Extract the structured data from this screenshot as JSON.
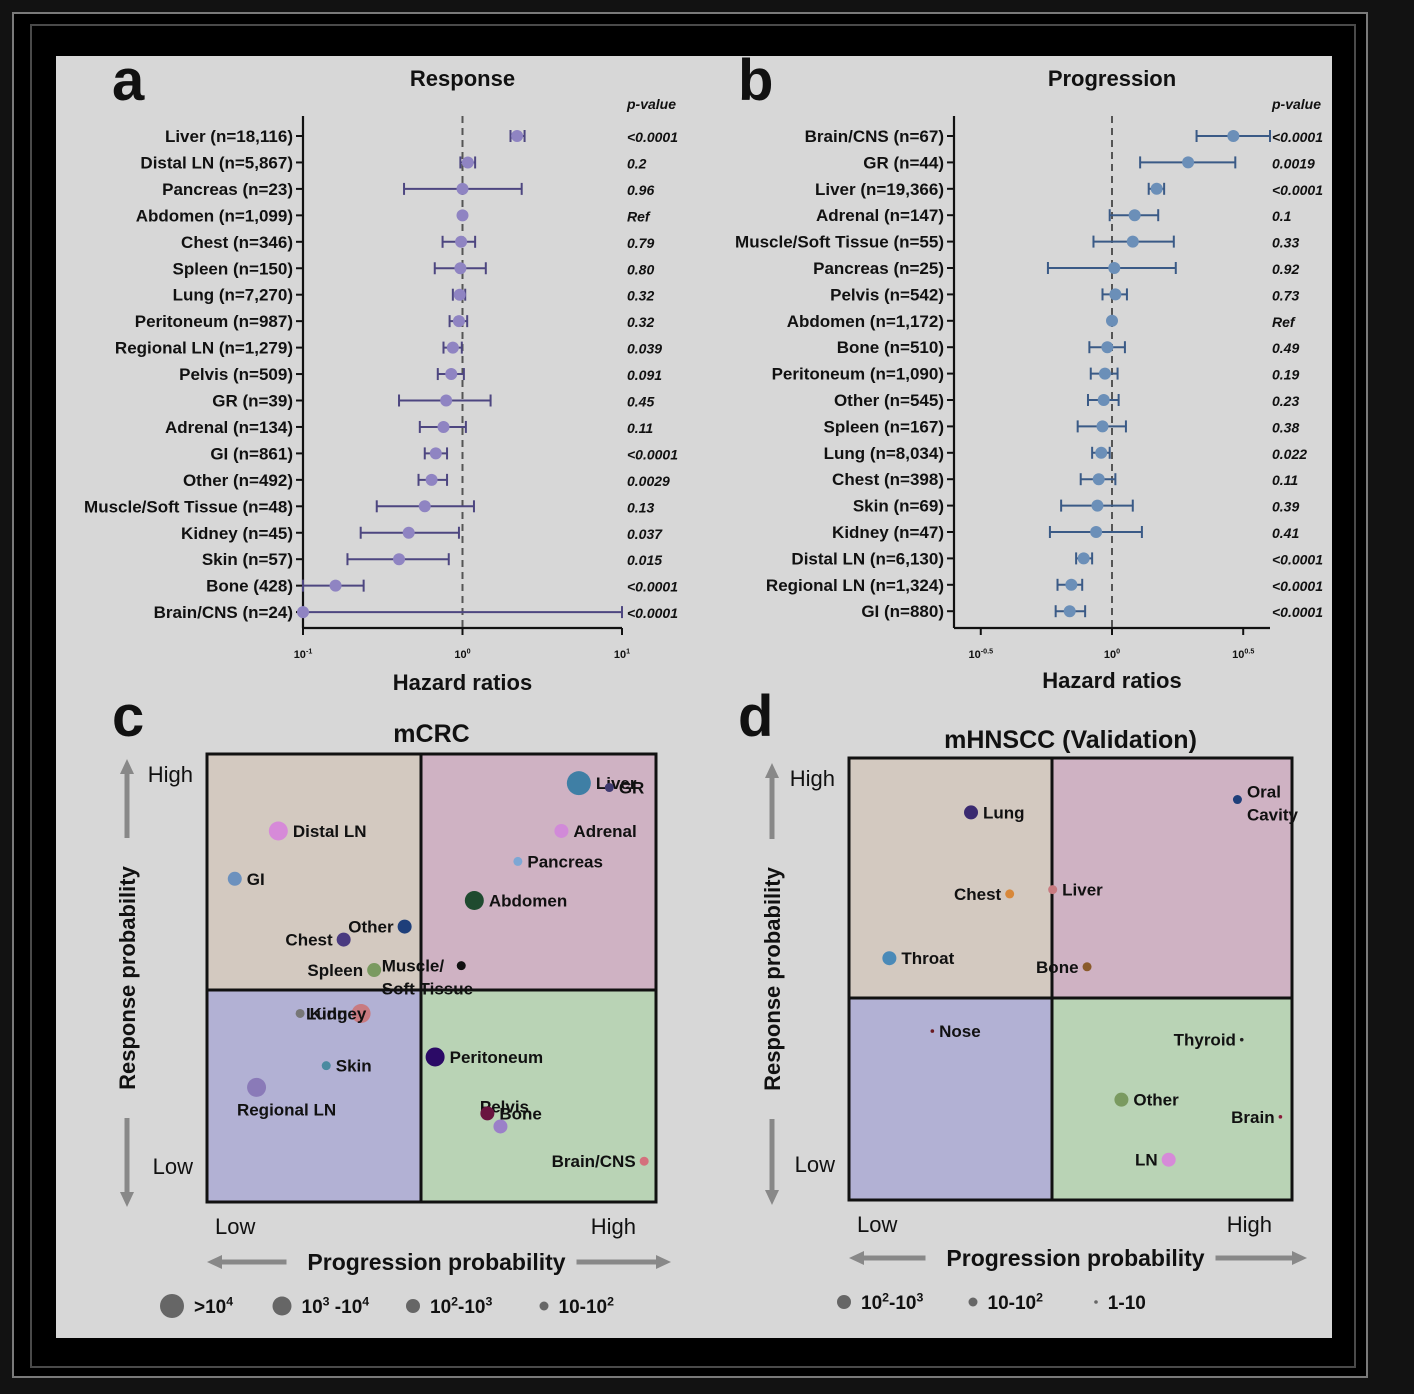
{
  "chart_data": [
    {
      "panel": "a",
      "type": "forest",
      "title": "Response",
      "xlabel": "Hazard ratios",
      "pvalue_header": "p-value",
      "x_scale": "log10",
      "xlim": [
        0.1,
        10
      ],
      "xticks": [
        {
          "value": 0.1,
          "base": "10",
          "exp": "-1"
        },
        {
          "value": 1,
          "base": "10",
          "exp": "0"
        },
        {
          "value": 10,
          "base": "10",
          "exp": "1"
        }
      ],
      "reference_line": 1,
      "color": "#8f84c2",
      "line_color": "#4d4680",
      "rows": [
        {
          "label": "Liver (n=18,116)",
          "hr": 2.2,
          "lo": 2.0,
          "hi": 2.45,
          "p": "<0.0001"
        },
        {
          "label": "Distal LN (n=5,867)",
          "hr": 1.08,
          "lo": 0.97,
          "hi": 1.2,
          "p": "0.2"
        },
        {
          "label": "Pancreas (n=23)",
          "hr": 1.0,
          "lo": 0.43,
          "hi": 2.35,
          "p": "0.96"
        },
        {
          "label": "Abdomen (n=1,099)",
          "hr": 1.0,
          "lo": 1.0,
          "hi": 1.0,
          "p": "Ref"
        },
        {
          "label": "Chest (n=346)",
          "hr": 0.98,
          "lo": 0.75,
          "hi": 1.2,
          "p": "0.79"
        },
        {
          "label": "Spleen (n=150)",
          "hr": 0.97,
          "lo": 0.67,
          "hi": 1.4,
          "p": "0.80"
        },
        {
          "label": "Lung (n=7,270)",
          "hr": 0.96,
          "lo": 0.87,
          "hi": 1.04,
          "p": "0.32"
        },
        {
          "label": "Peritoneum (n=987)",
          "hr": 0.95,
          "lo": 0.83,
          "hi": 1.07,
          "p": "0.32"
        },
        {
          "label": "Regional LN (n=1,279)",
          "hr": 0.87,
          "lo": 0.76,
          "hi": 0.99,
          "p": "0.039"
        },
        {
          "label": "Pelvis (n=509)",
          "hr": 0.85,
          "lo": 0.7,
          "hi": 1.02,
          "p": "0.091"
        },
        {
          "label": "GR (n=39)",
          "hr": 0.79,
          "lo": 0.4,
          "hi": 1.5,
          "p": "0.45"
        },
        {
          "label": "Adrenal (n=134)",
          "hr": 0.76,
          "lo": 0.54,
          "hi": 1.05,
          "p": "0.11"
        },
        {
          "label": "GI (n=861)",
          "hr": 0.68,
          "lo": 0.58,
          "hi": 0.8,
          "p": "<0.0001"
        },
        {
          "label": "Other (n=492)",
          "hr": 0.64,
          "lo": 0.53,
          "hi": 0.8,
          "p": "0.0029"
        },
        {
          "label": "Muscle/Soft Tissue (n=48)",
          "hr": 0.58,
          "lo": 0.29,
          "hi": 1.18,
          "p": "0.13"
        },
        {
          "label": "Kidney (n=45)",
          "hr": 0.46,
          "lo": 0.23,
          "hi": 0.95,
          "p": "0.037"
        },
        {
          "label": "Skin (n=57)",
          "hr": 0.4,
          "lo": 0.19,
          "hi": 0.82,
          "p": "0.015"
        },
        {
          "label": "Bone (428)",
          "hr": 0.16,
          "lo": 0.1,
          "hi": 0.24,
          "p": "<0.0001"
        },
        {
          "label": "Brain/CNS (n=24)",
          "hr": 0.1,
          "lo": 0.1,
          "hi": 10,
          "p": "<0.0001"
        }
      ]
    },
    {
      "panel": "b",
      "type": "forest",
      "title": "Progression",
      "xlabel": "Hazard ratios",
      "pvalue_header": "p-value",
      "x_scale": "log10",
      "xlim": [
        0.25,
        4
      ],
      "xticks": [
        {
          "value": 0.3162,
          "base": "10",
          "exp": "-0.5"
        },
        {
          "value": 1,
          "base": "10",
          "exp": "0"
        },
        {
          "value": 3.162,
          "base": "10",
          "exp": "0.5"
        }
      ],
      "reference_line": 1,
      "color": "#6b8fb8",
      "line_color": "#3a5a86",
      "rows": [
        {
          "label": "Brain/CNS (n=67)",
          "hr": 2.9,
          "lo": 2.1,
          "hi": 4.3,
          "p": "<0.0001"
        },
        {
          "label": "GR (n=44)",
          "hr": 1.95,
          "lo": 1.28,
          "hi": 2.95,
          "p": "0.0019"
        },
        {
          "label": "Liver (n=19,366)",
          "hr": 1.48,
          "lo": 1.38,
          "hi": 1.58,
          "p": "<0.0001"
        },
        {
          "label": "Adrenal (n=147)",
          "hr": 1.22,
          "lo": 0.98,
          "hi": 1.5,
          "p": "0.1"
        },
        {
          "label": "Muscle/Soft Tissue (n=55)",
          "hr": 1.2,
          "lo": 0.85,
          "hi": 1.72,
          "p": "0.33"
        },
        {
          "label": "Pancreas (n=25)",
          "hr": 1.02,
          "lo": 0.57,
          "hi": 1.75,
          "p": "0.92"
        },
        {
          "label": "Pelvis (n=542)",
          "hr": 1.03,
          "lo": 0.92,
          "hi": 1.14,
          "p": "0.73"
        },
        {
          "label": "Abdomen (n=1,172)",
          "hr": 1.0,
          "lo": 1.0,
          "hi": 1.0,
          "p": "Ref"
        },
        {
          "label": "Bone (n=510)",
          "hr": 0.96,
          "lo": 0.82,
          "hi": 1.12,
          "p": "0.49"
        },
        {
          "label": "Peritoneum (n=1,090)",
          "hr": 0.94,
          "lo": 0.83,
          "hi": 1.05,
          "p": "0.19"
        },
        {
          "label": "Other (n=545)",
          "hr": 0.93,
          "lo": 0.81,
          "hi": 1.06,
          "p": "0.23"
        },
        {
          "label": "Spleen (n=167)",
          "hr": 0.92,
          "lo": 0.74,
          "hi": 1.13,
          "p": "0.38"
        },
        {
          "label": "Lung (n=8,034)",
          "hr": 0.91,
          "lo": 0.84,
          "hi": 0.98,
          "p": "0.022"
        },
        {
          "label": "Chest (n=398)",
          "hr": 0.89,
          "lo": 0.76,
          "hi": 1.03,
          "p": "0.11"
        },
        {
          "label": "Skin (n=69)",
          "hr": 0.88,
          "lo": 0.64,
          "hi": 1.2,
          "p": "0.39"
        },
        {
          "label": "Kidney (n=47)",
          "hr": 0.87,
          "lo": 0.58,
          "hi": 1.3,
          "p": "0.41"
        },
        {
          "label": "Distal LN (n=6,130)",
          "hr": 0.78,
          "lo": 0.73,
          "hi": 0.84,
          "p": "<0.0001"
        },
        {
          "label": "Regional LN (n=1,324)",
          "hr": 0.7,
          "lo": 0.62,
          "hi": 0.77,
          "p": "<0.0001"
        },
        {
          "label": "GI (n=880)",
          "hr": 0.69,
          "lo": 0.61,
          "hi": 0.79,
          "p": "<0.0001"
        }
      ]
    },
    {
      "panel": "c",
      "type": "scatter",
      "title": "mCRC",
      "xlabel": "Progression probability",
      "ylabel": "Response probability",
      "x_low": "Low",
      "x_high": "High",
      "y_low": "Low",
      "y_high": "High",
      "quadrant_colors": {
        "top_left": "#d3c9c0",
        "top_right": "#cfb2c3",
        "bottom_left": "#b2b1d4",
        "bottom_right": "#b9d3b5"
      },
      "points": [
        {
          "label": "Liver",
          "x": 0.84,
          "y": 0.95,
          "size": ">10^4",
          "color": "#3f7fa5",
          "label_side": "right"
        },
        {
          "label": "Distal LN",
          "x": 0.15,
          "y": 0.84,
          "size": "10^3-10^4",
          "color": "#d68ad8",
          "label_side": "right"
        },
        {
          "label": "Pancreas",
          "x": 0.7,
          "y": 0.77,
          "size": "10-10^2",
          "color": "#7da7d4",
          "label_side": "right"
        },
        {
          "label": "Abdomen",
          "x": 0.6,
          "y": 0.68,
          "size": "10^3-10^4",
          "color": "#1f4a2f",
          "label_side": "right"
        },
        {
          "label": "Chest",
          "x": 0.3,
          "y": 0.59,
          "size": "10^2-10^3",
          "color": "#4a3a80",
          "label_side": "left"
        },
        {
          "label": "Spleen",
          "x": 0.37,
          "y": 0.52,
          "size": "10^2-10^3",
          "color": "#7a9a60",
          "label_side": "left"
        },
        {
          "label": "Lung",
          "x": 0.34,
          "y": 0.42,
          "size": "10^3-10^4",
          "color": "#c87a80",
          "label_side": "left"
        },
        {
          "label": "Peritoneum",
          "x": 0.51,
          "y": 0.32,
          "size": "10^3-10^4",
          "color": "#2b0a66",
          "label_side": "right"
        },
        {
          "label": "Pelvis",
          "x": 0.66,
          "y": 0.16,
          "size": "10^2-10^3",
          "color": "#9b80c8",
          "label_side": "above"
        },
        {
          "label": "Regional LN",
          "x": 0.1,
          "y": 0.25,
          "size": "10^3-10^4",
          "color": "#8a7ab8",
          "label_side": "below"
        },
        {
          "label": "GR",
          "x": 0.91,
          "y": 0.94,
          "size": "10-10^2",
          "color": "#3f3a70",
          "label_side": "right"
        },
        {
          "label": "Adrenal",
          "x": 0.8,
          "y": 0.84,
          "size": "10^2-10^3",
          "color": "#d18ad8",
          "label_side": "right"
        },
        {
          "label": "GI",
          "x": 0.05,
          "y": 0.73,
          "size": "10^2-10^3",
          "color": "#6c91be",
          "label_side": "right"
        },
        {
          "label": "Other",
          "x": 0.44,
          "y": 0.62,
          "size": "10^2-10^3",
          "color": "#1e3f7a",
          "label_side": "left"
        },
        {
          "label": "Muscle/\nSoft Tissue",
          "x": 0.57,
          "y": 0.53,
          "size": "10-10^2",
          "color": "#111111",
          "label_side": "left"
        },
        {
          "label": "Kidney",
          "x": 0.2,
          "y": 0.42,
          "size": "10-10^2",
          "color": "#777777",
          "label_side": "right"
        },
        {
          "label": "Skin",
          "x": 0.26,
          "y": 0.3,
          "size": "10-10^2",
          "color": "#4a8aa0",
          "label_side": "right"
        },
        {
          "label": "Bone",
          "x": 0.63,
          "y": 0.19,
          "size": "10^2-10^3",
          "color": "#6a1440",
          "label_side": "right"
        },
        {
          "label": "Brain/CNS",
          "x": 0.99,
          "y": 0.08,
          "size": "10-10^2",
          "color": "#d4707c",
          "label_side": "left"
        }
      ],
      "size_legend": [
        {
          "label_base": ">10",
          "label_exp": "4",
          "size": ">10^4"
        },
        {
          "label_base": "10",
          "label_exp": "3",
          "label_mid": " -10",
          "label_exp2": "4",
          "size": "10^3-10^4"
        },
        {
          "label_base": "10",
          "label_exp": "2",
          "label_mid": "-10",
          "label_exp2": "3",
          "size": "10^2-10^3"
        },
        {
          "label_base": "10-10",
          "label_exp": "2",
          "size": "10-10^2"
        }
      ]
    },
    {
      "panel": "d",
      "type": "scatter",
      "title": "mHNSCC (Validation)",
      "xlabel": "Progression probability",
      "ylabel": "Response probability",
      "x_low": "Low",
      "x_high": "High",
      "y_low": "Low",
      "y_high": "High",
      "quadrant_colors": {
        "top_left": "#d3c9c0",
        "top_right": "#cfb2c3",
        "bottom_left": "#b2b1d4",
        "bottom_right": "#b9d3b5"
      },
      "points": [
        {
          "label": "Oral\nCavity",
          "x": 0.89,
          "y": 0.92,
          "size": "10-10^2",
          "color": "#1e3f7a",
          "label_side": "right"
        },
        {
          "label": "Liver",
          "x": 0.46,
          "y": 0.71,
          "size": "10-10^2",
          "color": "#c87a80",
          "label_side": "right"
        },
        {
          "label": "Throat",
          "x": 0.08,
          "y": 0.55,
          "size": "10^2-10^3",
          "color": "#4a8ab8",
          "label_side": "right"
        },
        {
          "label": "Other",
          "x": 0.62,
          "y": 0.22,
          "size": "10^2-10^3",
          "color": "#7a9a60",
          "label_side": "right"
        },
        {
          "label": "Nose",
          "x": 0.18,
          "y": 0.38,
          "size": "1-10",
          "color": "#6a1a20",
          "label_side": "right"
        },
        {
          "label": "LN",
          "x": 0.73,
          "y": 0.08,
          "size": "10^2-10^3",
          "color": "#d68ad8",
          "label_side": "left"
        },
        {
          "label": "Lung",
          "x": 0.27,
          "y": 0.89,
          "size": "10^2-10^3",
          "color": "#3a2a70",
          "label_side": "right"
        },
        {
          "label": "Chest",
          "x": 0.36,
          "y": 0.7,
          "size": "10-10^2",
          "color": "#d8883a",
          "label_side": "left"
        },
        {
          "label": "Bone",
          "x": 0.54,
          "y": 0.53,
          "size": "10-10^2",
          "color": "#8a5a2a",
          "label_side": "left"
        },
        {
          "label": "Thyroid",
          "x": 0.9,
          "y": 0.36,
          "size": "1-10",
          "color": "#222222",
          "label_side": "left"
        },
        {
          "label": "Brain",
          "x": 0.99,
          "y": 0.18,
          "size": "1-10",
          "color": "#8a1a3a",
          "label_side": "left"
        }
      ],
      "size_legend": [
        {
          "label_base": "10",
          "label_exp": "2",
          "label_mid": "-10",
          "label_exp2": "3",
          "size": "10^2-10^3"
        },
        {
          "label_base": "10-10",
          "label_exp": "2",
          "size": "10-10^2"
        },
        {
          "label_base": "1-10",
          "size": "1-10"
        }
      ]
    }
  ],
  "panel_letters": [
    "a",
    "b",
    "c",
    "d"
  ]
}
